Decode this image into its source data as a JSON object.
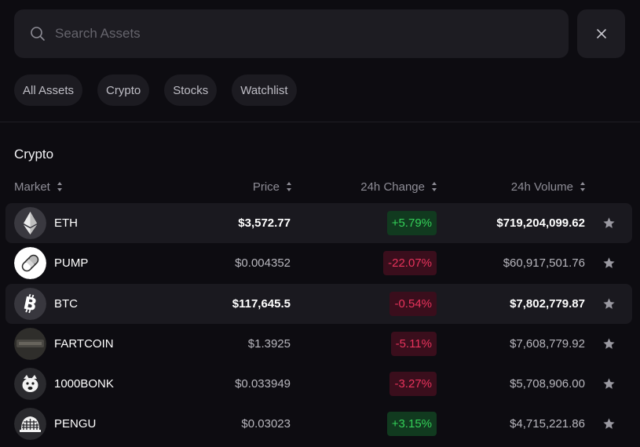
{
  "search": {
    "placeholder": "Search Assets",
    "value": ""
  },
  "filters": [
    "All Assets",
    "Crypto",
    "Stocks",
    "Watchlist"
  ],
  "section": {
    "title": "Crypto"
  },
  "columns": {
    "market": "Market",
    "price": "Price",
    "change": "24h Change",
    "volume": "24h Volume"
  },
  "colors": {
    "up": "#34d058",
    "down": "#e8335c",
    "background": "#0d0c11"
  },
  "rows": [
    {
      "symbol": "ETH",
      "icon": "eth-icon",
      "price": "$3,572.77",
      "change": "+5.79%",
      "direction": "up",
      "volume": "$719,204,099.62",
      "highlight": true
    },
    {
      "symbol": "PUMP",
      "icon": "pill-icon",
      "price": "$0.004352",
      "change": "-22.07%",
      "direction": "down",
      "volume": "$60,917,501.76",
      "highlight": false
    },
    {
      "symbol": "BTC",
      "icon": "btc-icon",
      "price": "$117,645.5",
      "change": "-0.54%",
      "direction": "down",
      "volume": "$7,802,779.87",
      "highlight": true
    },
    {
      "symbol": "FARTCOIN",
      "icon": "fartcoin-icon",
      "price": "$1.3925",
      "change": "-5.11%",
      "direction": "down",
      "volume": "$7,608,779.92",
      "highlight": false
    },
    {
      "symbol": "1000BONK",
      "icon": "bonk-dog-icon",
      "price": "$0.033949",
      "change": "-3.27%",
      "direction": "down",
      "volume": "$5,708,906.00",
      "highlight": false
    },
    {
      "symbol": "PENGU",
      "icon": "pengu-icon",
      "price": "$0.03023",
      "change": "+3.15%",
      "direction": "up",
      "volume": "$4,715,221.86",
      "highlight": false
    }
  ]
}
